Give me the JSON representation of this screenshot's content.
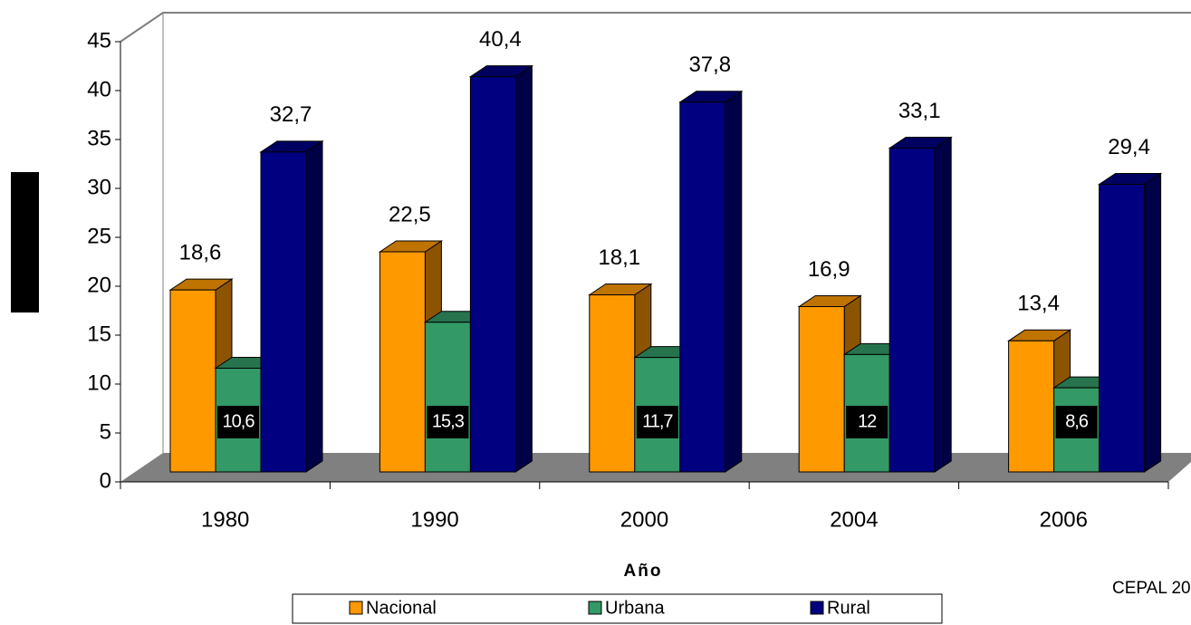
{
  "chart_data": {
    "type": "bar3d",
    "xlabel": "Año",
    "source": "CEPAL 20",
    "categories": [
      "1980",
      "1990",
      "2000",
      "2004",
      "2006"
    ],
    "ylim": [
      0,
      45
    ],
    "yticks": [
      0,
      5,
      10,
      15,
      20,
      25,
      30,
      35,
      40,
      45
    ],
    "legend": "bottom",
    "series": [
      {
        "name": "Nacional",
        "color": "#FF9900",
        "values": [
          18.6,
          22.5,
          18.1,
          16.9,
          13.4
        ],
        "value_labels": [
          "18,6",
          "22,5",
          "18,1",
          "16,9",
          "13,4"
        ]
      },
      {
        "name": "Urbana",
        "color": "#339966",
        "values": [
          10.6,
          15.3,
          11.7,
          12,
          8.6
        ],
        "value_labels": [
          "10,6",
          "15,3",
          "11,7",
          "12",
          "8,6"
        ]
      },
      {
        "name": "Rural",
        "color": "#000080",
        "values": [
          32.7,
          40.4,
          37.8,
          33.1,
          29.4
        ],
        "value_labels": [
          "32,7",
          "40,4",
          "37,8",
          "33,1",
          "29,4"
        ]
      }
    ]
  }
}
